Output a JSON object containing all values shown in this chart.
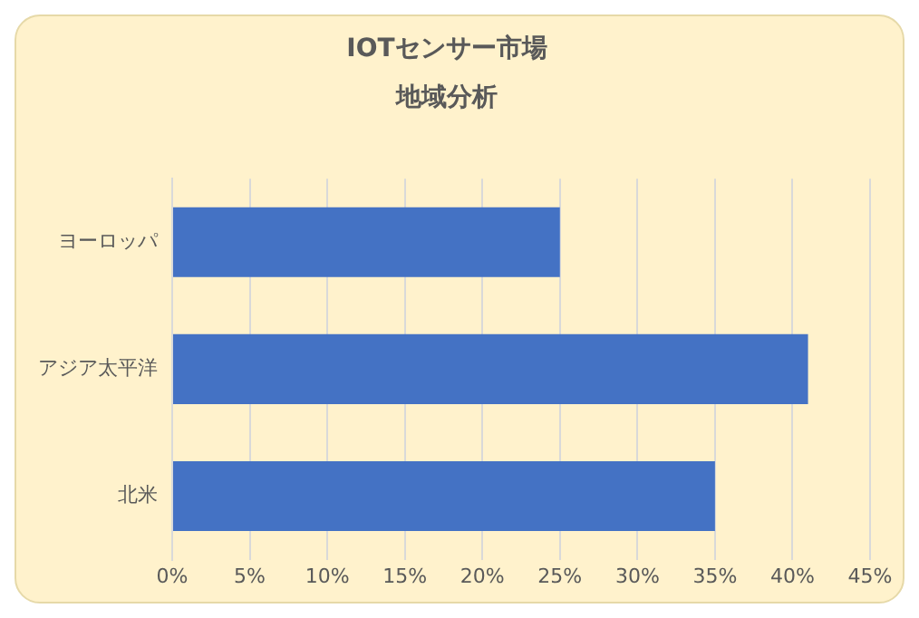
{
  "chart_data": {
    "type": "bar",
    "orientation": "horizontal",
    "title": "IOTセンサー市場",
    "subtitle": "地域分析",
    "categories": [
      "ヨーロッパ",
      "アジア太平洋",
      "北米"
    ],
    "values": [
      25,
      41,
      35
    ],
    "color": "#4472c4",
    "xlim": [
      0,
      45
    ],
    "xticks": [
      {
        "value": 0,
        "label": "0%"
      },
      {
        "value": 5,
        "label": "5%"
      },
      {
        "value": 10,
        "label": "10%"
      },
      {
        "value": 15,
        "label": "15%"
      },
      {
        "value": 20,
        "label": "20%"
      },
      {
        "value": 25,
        "label": "25%"
      },
      {
        "value": 30,
        "label": "30%"
      },
      {
        "value": 35,
        "label": "35%"
      },
      {
        "value": 40,
        "label": "40%"
      },
      {
        "value": 45,
        "label": "45%"
      }
    ],
    "grid": "x",
    "legend": false
  }
}
